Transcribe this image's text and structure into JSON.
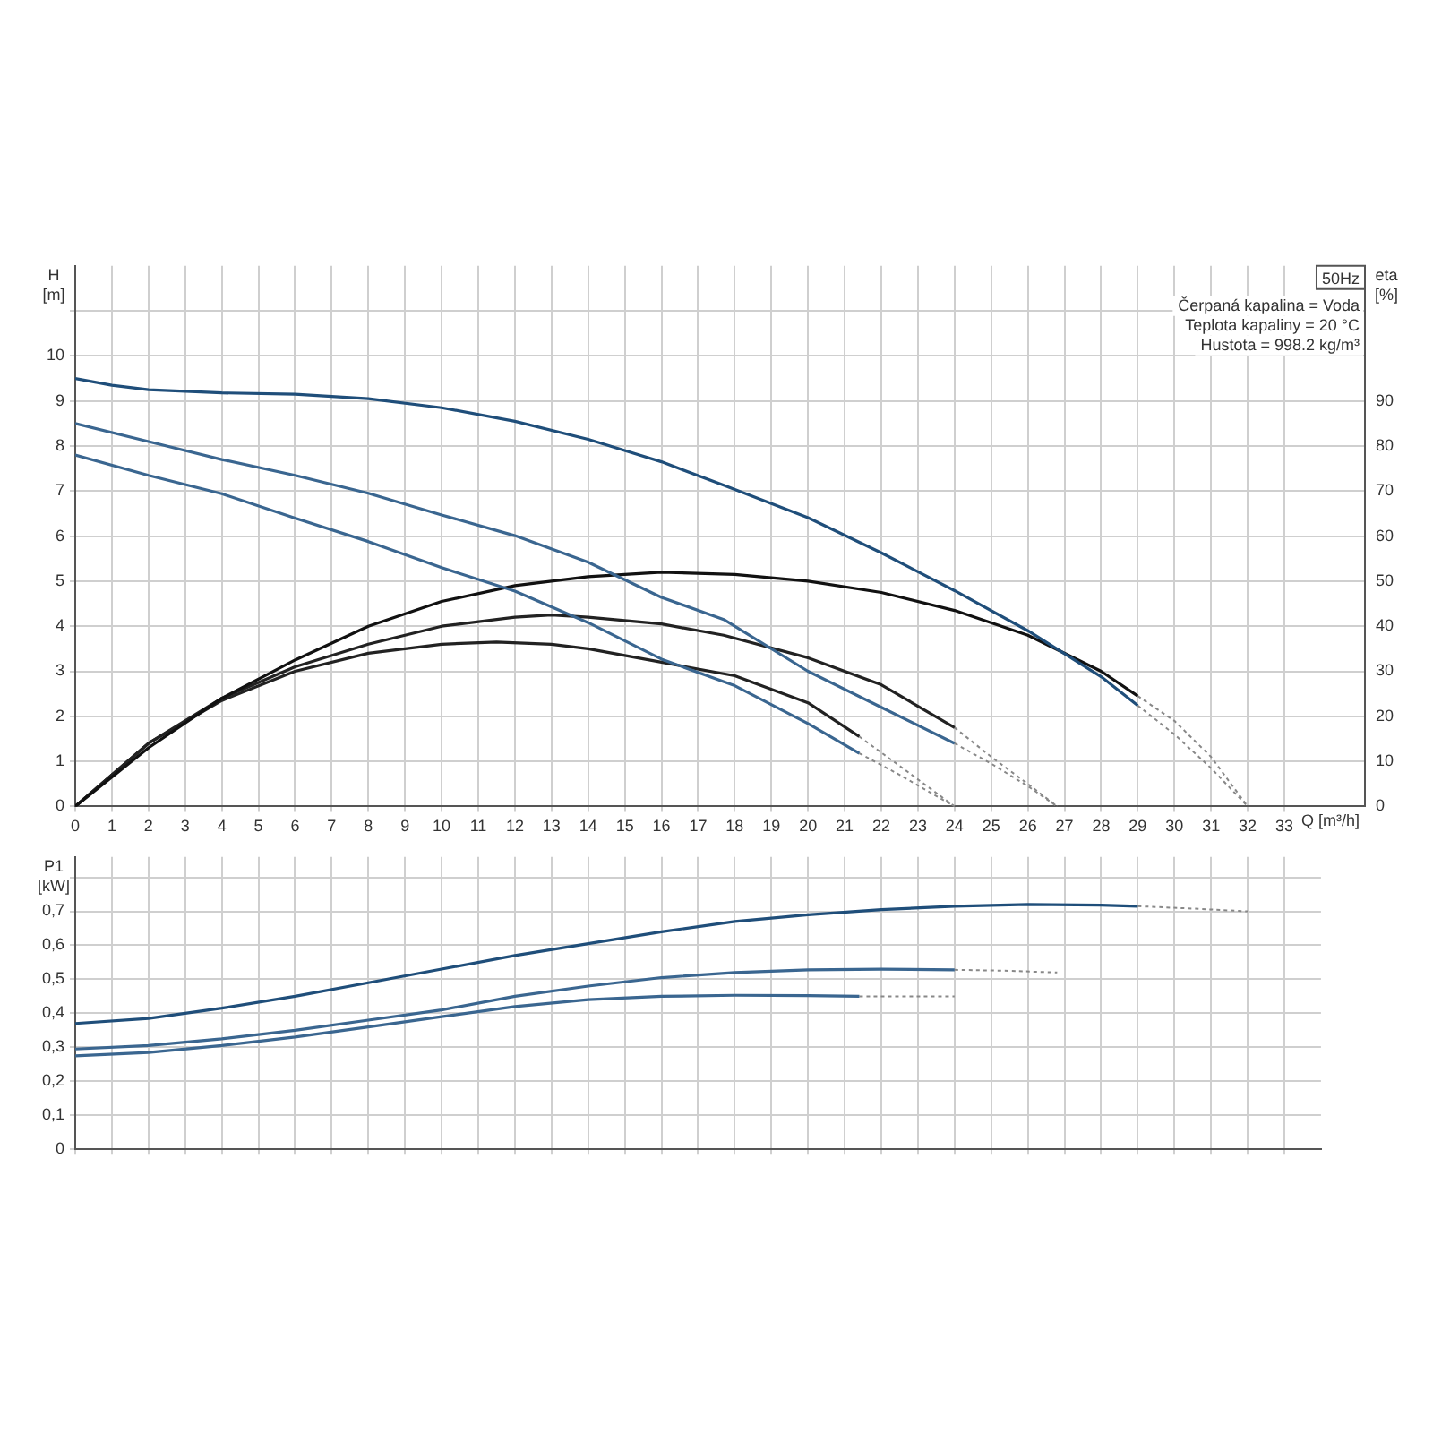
{
  "chart_data": [
    {
      "type": "line",
      "xlabel": "Q [m³/h]",
      "ylabel": "H [m]",
      "y2label": "eta [%]",
      "annotations": [
        "50Hz",
        "Čerpaná kapalina = Voda",
        "Teplota kapaliny = 20 °C",
        "Hustota = 998.2 kg/m³"
      ],
      "xlim": [
        0,
        35.2
      ],
      "xticks": [
        0,
        1,
        2,
        3,
        4,
        5,
        6,
        7,
        8,
        9,
        10,
        11,
        12,
        13,
        14,
        15,
        16,
        17,
        18,
        19,
        20,
        21,
        22,
        23,
        24,
        25,
        26,
        27,
        28,
        29,
        30,
        31,
        32,
        33
      ],
      "ylim": [
        0,
        12
      ],
      "yticks": [
        0,
        1,
        2,
        3,
        4,
        5,
        6,
        7,
        8,
        9,
        10,
        {
          "value": 11,
          "label": null
        }
      ],
      "y2lim": [
        0,
        120
      ],
      "y2ticks": [
        0,
        10,
        20,
        30,
        40,
        50,
        60,
        70,
        80,
        90
      ],
      "grid": true,
      "legend": false,
      "marker": "none",
      "series": [
        {
          "color": "#1f4e7a",
          "x": [
            0,
            1,
            2,
            4,
            6,
            8,
            10,
            12,
            14,
            16,
            17.7,
            20,
            22,
            24,
            26,
            28,
            29
          ],
          "values": [
            9.5,
            9.35,
            9.25,
            9.18,
            9.15,
            9.05,
            8.85,
            8.55,
            8.15,
            7.65,
            7.13,
            6.41,
            5.63,
            4.79,
            3.9,
            2.88,
            2.24
          ]
        },
        {
          "color": "#888888",
          "line_style": "dotted",
          "x": [
            29,
            30,
            31,
            32
          ],
          "values": [
            2.24,
            1.6,
            0.85,
            0
          ]
        },
        {
          "color": "#3a6690",
          "x": [
            0,
            2,
            4,
            6,
            8,
            10,
            12,
            14,
            16,
            17.7,
            20,
            22,
            24
          ],
          "values": [
            8.5,
            8.1,
            7.7,
            7.35,
            6.95,
            6.47,
            6.01,
            5.42,
            4.64,
            4.15,
            3.0,
            2.2,
            1.4
          ]
        },
        {
          "color": "#888888",
          "line_style": "dotted",
          "x": [
            24,
            25,
            26,
            26.8
          ],
          "values": [
            1.4,
            0.95,
            0.45,
            0
          ]
        },
        {
          "color": "#3a6690",
          "x": [
            0,
            2,
            4,
            6,
            8,
            10,
            12,
            14,
            16,
            18,
            20,
            21.4
          ],
          "values": [
            7.8,
            7.35,
            6.94,
            6.4,
            5.88,
            5.3,
            4.78,
            4.08,
            3.27,
            2.68,
            1.84,
            1.18
          ]
        },
        {
          "color": "#888888",
          "line_style": "dotted",
          "x": [
            21.4,
            22.5,
            24
          ],
          "values": [
            1.18,
            0.7,
            0
          ]
        },
        {
          "color": "#111111",
          "axis": "y2",
          "x": [
            0,
            2,
            4,
            6,
            8,
            10,
            12,
            14,
            16,
            18,
            20,
            22,
            24,
            26,
            28,
            29
          ],
          "values": [
            0,
            13,
            24,
            32.5,
            40,
            45.5,
            49,
            51,
            52,
            51.5,
            50,
            47.5,
            43.5,
            38,
            30,
            24.5
          ]
        },
        {
          "color": "#888888",
          "line_style": "dotted",
          "axis": "y2",
          "x": [
            29,
            30,
            31,
            32
          ],
          "values": [
            24.5,
            19,
            11,
            0
          ]
        },
        {
          "color": "#222222",
          "axis": "y2",
          "x": [
            0,
            2,
            4,
            6,
            8,
            10,
            12,
            13,
            14,
            16,
            17.7,
            20,
            22,
            24
          ],
          "values": [
            0,
            14,
            24,
            31,
            36,
            40,
            42,
            42.5,
            42,
            40.5,
            38,
            33,
            27,
            17.5
          ]
        },
        {
          "color": "#888888",
          "line_style": "dotted",
          "axis": "y2",
          "x": [
            24,
            25,
            26,
            26.8
          ],
          "values": [
            17.5,
            11,
            5,
            0
          ]
        },
        {
          "color": "#222222",
          "axis": "y2",
          "x": [
            0,
            2,
            4,
            6,
            8,
            10,
            11.5,
            13,
            14,
            16,
            18,
            20,
            21.4
          ],
          "values": [
            0,
            14,
            23.5,
            30,
            34,
            36,
            36.5,
            36,
            35,
            32,
            29,
            23,
            15.5
          ]
        },
        {
          "color": "#888888",
          "line_style": "dotted",
          "axis": "y2",
          "x": [
            21.4,
            22.5,
            24
          ],
          "values": [
            15.5,
            9,
            0
          ]
        }
      ]
    },
    {
      "type": "line",
      "ylabel": "P1 [kW]",
      "xlim": [
        0,
        34
      ],
      "xticks": [
        0,
        1,
        2,
        3,
        4,
        5,
        6,
        7,
        8,
        9,
        10,
        11,
        12,
        13,
        14,
        15,
        16,
        17,
        18,
        19,
        20,
        21,
        22,
        23,
        24,
        25,
        26,
        27,
        28,
        29,
        30,
        31,
        32,
        33
      ],
      "ylim": [
        0,
        0.86
      ],
      "yticks": [
        0,
        {
          "value": 0.1,
          "label": "0,1"
        },
        {
          "value": 0.2,
          "label": "0,2"
        },
        {
          "value": 0.3,
          "label": "0,3"
        },
        {
          "value": 0.4,
          "label": "0,4"
        },
        {
          "value": 0.5,
          "label": "0,5"
        },
        {
          "value": 0.6,
          "label": "0,6"
        },
        {
          "value": 0.7,
          "label": "0,7"
        },
        {
          "value": 0.8,
          "label": null
        }
      ],
      "tick_labels": "y",
      "grid": true,
      "legend": false,
      "marker": "none",
      "series": [
        {
          "color": "#1f4e7a",
          "x": [
            0,
            2,
            4,
            6,
            8,
            10,
            12,
            14,
            16,
            18,
            20,
            22,
            24,
            26,
            28,
            29
          ],
          "values": [
            0.37,
            0.385,
            0.415,
            0.45,
            0.49,
            0.53,
            0.57,
            0.605,
            0.64,
            0.67,
            0.69,
            0.705,
            0.715,
            0.72,
            0.718,
            0.715
          ]
        },
        {
          "color": "#888888",
          "line_style": "dotted",
          "x": [
            29,
            30.5,
            32
          ],
          "values": [
            0.715,
            0.708,
            0.7
          ]
        },
        {
          "color": "#3a6690",
          "x": [
            0,
            2,
            4,
            6,
            8,
            10,
            12,
            14,
            16,
            18,
            20,
            22,
            24
          ],
          "values": [
            0.295,
            0.305,
            0.325,
            0.35,
            0.38,
            0.41,
            0.45,
            0.48,
            0.505,
            0.52,
            0.528,
            0.53,
            0.528
          ]
        },
        {
          "color": "#888888",
          "line_style": "dotted",
          "x": [
            24,
            25.5,
            26.8
          ],
          "values": [
            0.528,
            0.525,
            0.52
          ]
        },
        {
          "color": "#3a6690",
          "x": [
            0,
            2,
            4,
            6,
            8,
            10,
            12,
            14,
            16,
            18,
            20,
            21.4
          ],
          "values": [
            0.275,
            0.285,
            0.305,
            0.33,
            0.36,
            0.39,
            0.42,
            0.44,
            0.45,
            0.453,
            0.452,
            0.45
          ]
        },
        {
          "color": "#888888",
          "line_style": "dotted",
          "x": [
            21.4,
            22.7,
            24
          ],
          "values": [
            0.45,
            0.45,
            0.45
          ]
        }
      ]
    }
  ]
}
